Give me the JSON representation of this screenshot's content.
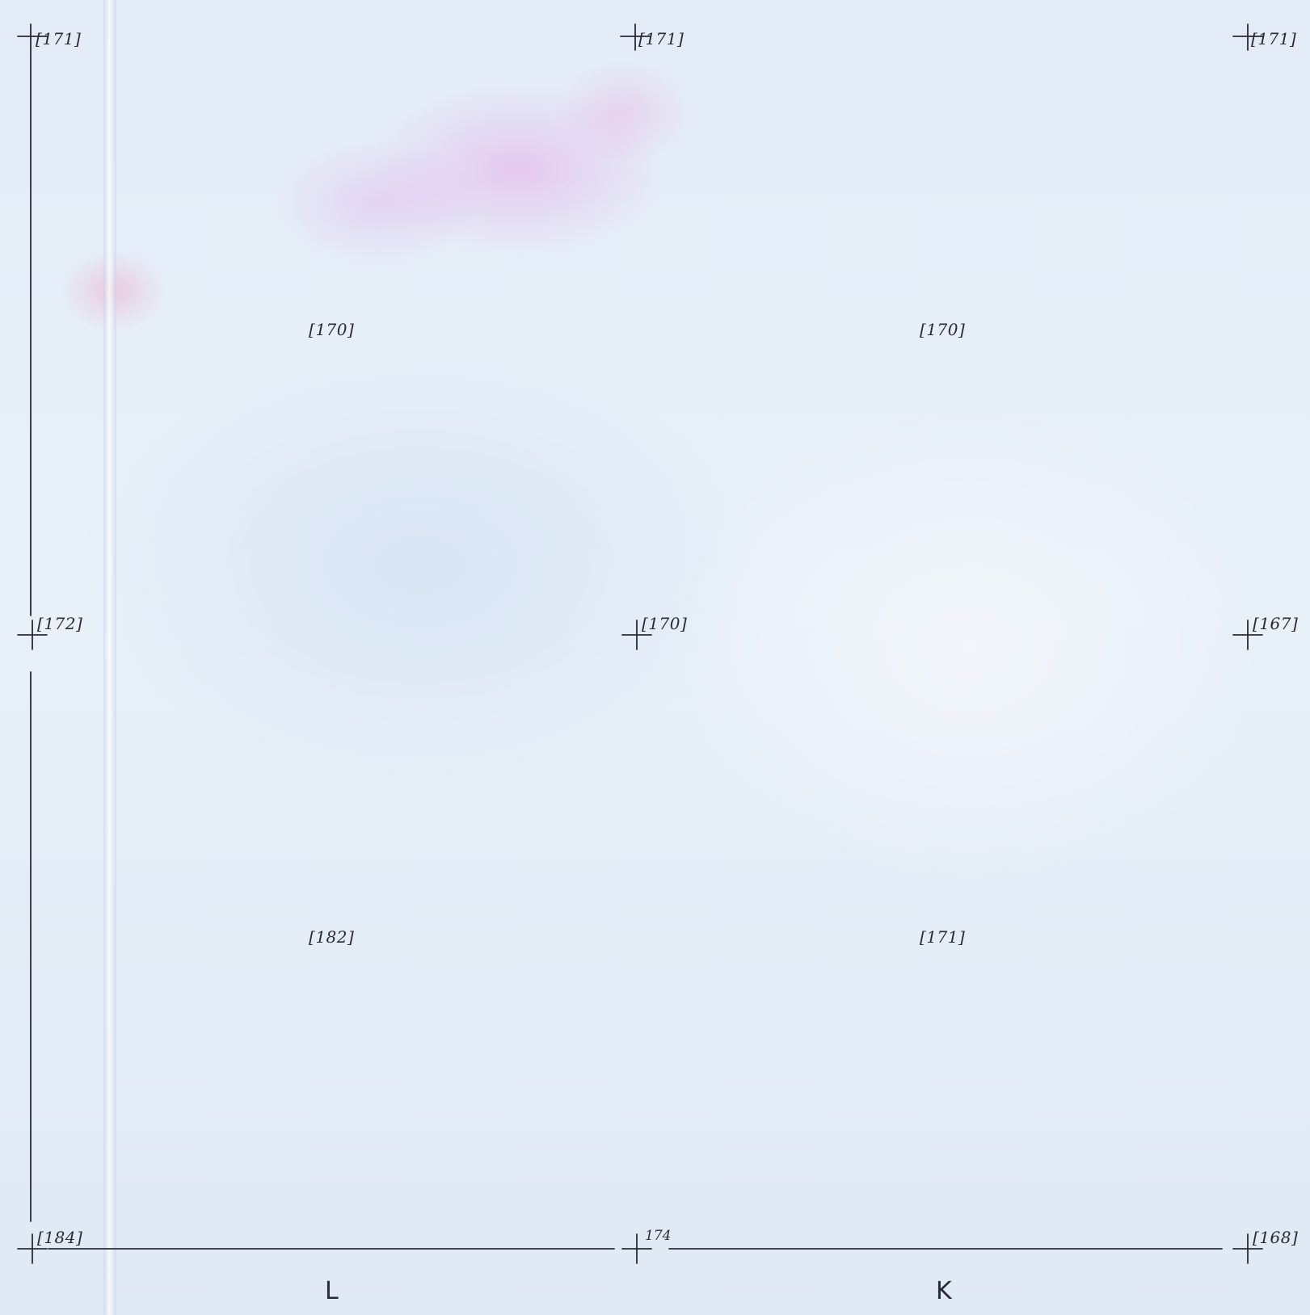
{
  "spot_heights": {
    "top_left": "171",
    "top_center": "171",
    "top_right": "171",
    "upper_left_cell": "170",
    "upper_right_cell": "170",
    "mid_left": "172",
    "mid_center": "170",
    "mid_right": "167",
    "lower_left_cell": "182",
    "lower_right_cell": "171",
    "bottom_left": "184",
    "bottom_center": "174",
    "bottom_right": "168"
  },
  "sheet_labels": {
    "left": "L",
    "right": "K"
  },
  "colors": {
    "ink": "#2a2a35",
    "paper": "#e6eef8"
  }
}
